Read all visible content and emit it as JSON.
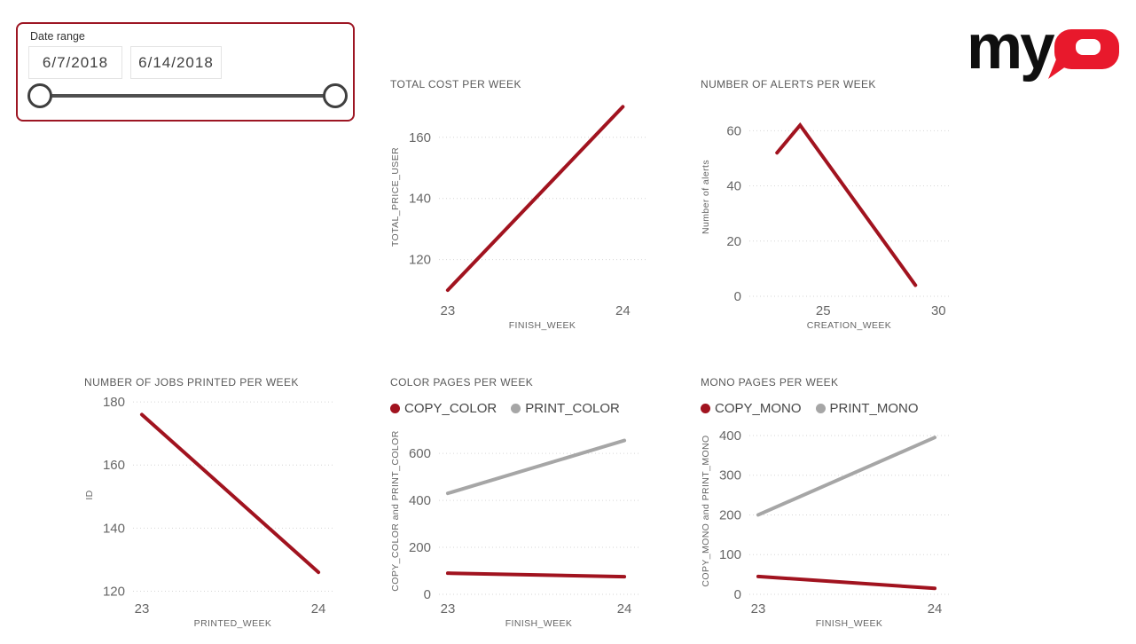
{
  "slicer": {
    "label": "Date range",
    "start_date": "6/7/2018",
    "end_date": "6/14/2018",
    "border_color": "#9d1623"
  },
  "logo": {
    "text_my": "my",
    "text_q": "Q",
    "red": "#e8192c",
    "black": "#0f0f0f"
  },
  "colors": {
    "series_red": "#a1131f",
    "series_gray": "#a6a6a6",
    "tick_text": "#666666",
    "title_text": "#595959",
    "gridline": "#d6d6d6"
  },
  "chart_data": [
    {
      "type": "line",
      "title": "TOTAL COST PER WEEK",
      "xlabel": "FINISH_WEEK",
      "ylabel": "TOTAL_PRICE_USER",
      "x": [
        23,
        24
      ],
      "series": [
        {
          "name": "TOTAL_PRICE_USER",
          "color": "#a1131f",
          "values": [
            110,
            170
          ]
        }
      ],
      "xticks": [
        23,
        24
      ],
      "yticks": [
        120,
        140,
        160
      ],
      "xlim": [
        22.95,
        24.13
      ],
      "ylim": [
        108,
        173
      ],
      "grid": "dotted-horizontal",
      "legend": false
    },
    {
      "type": "line",
      "title": "NUMBER OF ALERTS PER WEEK",
      "xlabel": "CREATION_WEEK",
      "ylabel": "Number of alerts",
      "x": [
        23,
        24,
        29
      ],
      "series": [
        {
          "name": "Number of alerts",
          "color": "#a1131f",
          "values": [
            52,
            62,
            4
          ]
        }
      ],
      "xticks": [
        25,
        30
      ],
      "yticks": [
        0,
        20,
        40,
        60
      ],
      "xlim": [
        21.8,
        30.45
      ],
      "ylim": [
        0,
        72
      ],
      "grid": "dotted-horizontal",
      "legend": false
    },
    {
      "type": "line",
      "title": "NUMBER OF JOBS PRINTED PER WEEK",
      "xlabel": "PRINTED_WEEK",
      "ylabel": "ID",
      "x": [
        23,
        24
      ],
      "series": [
        {
          "name": "ID",
          "color": "#a1131f",
          "values": [
            176,
            126
          ]
        }
      ],
      "xticks": [
        23,
        24
      ],
      "yticks": [
        120,
        140,
        160,
        180
      ],
      "xlim": [
        22.95,
        24.08
      ],
      "ylim": [
        119,
        182
      ],
      "grid": "dotted-horizontal",
      "legend": false
    },
    {
      "type": "line",
      "title": "COLOR PAGES PER WEEK",
      "xlabel": "FINISH_WEEK",
      "ylabel": "COPY_COLOR and PRINT_COLOR",
      "x": [
        23,
        24
      ],
      "series": [
        {
          "name": "COPY_COLOR",
          "color": "#a1131f",
          "values": [
            90,
            75
          ]
        },
        {
          "name": "PRINT_COLOR",
          "color": "#a6a6a6",
          "values": [
            430,
            655
          ]
        }
      ],
      "xticks": [
        23,
        24
      ],
      "yticks": [
        0,
        200,
        400,
        600
      ],
      "xlim": [
        22.95,
        24.08
      ],
      "ylim": [
        0,
        710
      ],
      "grid": "dotted-horizontal",
      "legend": true,
      "legend_position": "top-left"
    },
    {
      "type": "line",
      "title": "MONO PAGES PER WEEK",
      "xlabel": "FINISH_WEEK",
      "ylabel": "COPY_MONO and PRINT_MONO",
      "x": [
        23,
        24
      ],
      "series": [
        {
          "name": "COPY_MONO",
          "color": "#a1131f",
          "values": [
            45,
            15
          ]
        },
        {
          "name": "PRINT_MONO",
          "color": "#a6a6a6",
          "values": [
            200,
            395
          ]
        }
      ],
      "xticks": [
        23,
        24
      ],
      "yticks": [
        0,
        100,
        200,
        300,
        400
      ],
      "xlim": [
        22.95,
        24.08
      ],
      "ylim": [
        0,
        420
      ],
      "grid": "dotted-horizontal",
      "legend": true,
      "legend_position": "top-left"
    }
  ]
}
